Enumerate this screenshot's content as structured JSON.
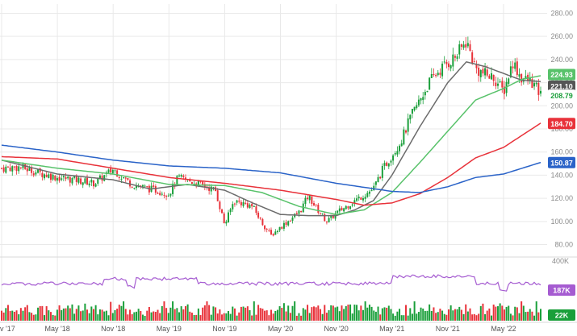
{
  "chart_data": {
    "type": "candlestick",
    "price_axis": {
      "ticks": [
        80,
        100,
        120,
        140,
        160,
        180,
        200,
        220,
        240,
        260,
        280
      ],
      "tick_labels": [
        "80.00",
        "100.00",
        "120.00",
        "140.00",
        "160.00",
        "180.00",
        "200.00",
        "220.00",
        "240.00",
        "260.00",
        "280.00"
      ],
      "ylim": [
        72,
        288
      ]
    },
    "x_axis": {
      "labels": [
        "v '17",
        "May '18",
        "Nov '18",
        "May '19",
        "Nov '19",
        "May '20",
        "Nov '20",
        "May '21",
        "Nov '21",
        "May '22"
      ],
      "start_date": "2017-11",
      "end_date": "2022-09"
    },
    "ohlc_anchor_closes": [
      [
        "2017-11",
        146
      ],
      [
        "2018-01",
        147
      ],
      [
        "2018-03",
        142
      ],
      [
        "2018-05",
        138
      ],
      [
        "2018-07",
        136
      ],
      [
        "2018-09",
        133
      ],
      [
        "2018-11",
        145
      ],
      [
        "2019-01",
        132
      ],
      [
        "2019-03",
        128
      ],
      [
        "2019-05",
        124
      ],
      [
        "2019-06",
        138
      ],
      [
        "2019-08",
        133
      ],
      [
        "2019-10",
        127
      ],
      [
        "2019-11",
        97
      ],
      [
        "2019-12",
        118
      ],
      [
        "2020-02",
        113
      ],
      [
        "2020-03",
        99
      ],
      [
        "2020-04",
        88
      ],
      [
        "2020-05",
        95
      ],
      [
        "2020-07",
        108
      ],
      [
        "2020-08",
        122
      ],
      [
        "2020-09",
        110
      ],
      [
        "2020-10",
        100
      ],
      [
        "2020-11",
        107
      ],
      [
        "2021-01",
        118
      ],
      [
        "2021-03",
        128
      ],
      [
        "2021-04",
        145
      ],
      [
        "2021-06",
        170
      ],
      [
        "2021-07",
        190
      ],
      [
        "2021-09",
        220
      ],
      [
        "2021-10",
        230
      ],
      [
        "2021-12",
        244
      ],
      [
        "2022-01",
        256
      ],
      [
        "2022-02",
        232
      ],
      [
        "2022-03",
        227
      ],
      [
        "2022-04",
        224
      ],
      [
        "2022-05",
        212
      ],
      [
        "2022-06",
        238
      ],
      [
        "2022-07",
        223
      ],
      [
        "2022-08",
        221
      ],
      [
        "2022-09",
        209
      ]
    ],
    "moving_averages": [
      {
        "color": "#6b6b6b",
        "points": [
          [
            "2017-11",
            153
          ],
          [
            "2018-05",
            141
          ],
          [
            "2018-11",
            136
          ],
          [
            "2019-03",
            128
          ],
          [
            "2019-07",
            132
          ],
          [
            "2019-11",
            127
          ],
          [
            "2020-02",
            116
          ],
          [
            "2020-05",
            106
          ],
          [
            "2020-08",
            105
          ],
          [
            "2020-11",
            105
          ],
          [
            "2021-01",
            110
          ],
          [
            "2021-03",
            118
          ],
          [
            "2021-05",
            140
          ],
          [
            "2021-08",
            182
          ],
          [
            "2021-11",
            220
          ],
          [
            "2022-01",
            238
          ],
          [
            "2022-03",
            234
          ],
          [
            "2022-05",
            228
          ],
          [
            "2022-07",
            222
          ],
          [
            "2022-09",
            221
          ]
        ]
      },
      {
        "color": "#58c26a",
        "points": [
          [
            "2017-11",
            153
          ],
          [
            "2018-05",
            146
          ],
          [
            "2018-11",
            141
          ],
          [
            "2019-05",
            132
          ],
          [
            "2019-11",
            131
          ],
          [
            "2020-03",
            125
          ],
          [
            "2020-07",
            113
          ],
          [
            "2020-11",
            106
          ],
          [
            "2021-02",
            110
          ],
          [
            "2021-05",
            125
          ],
          [
            "2021-08",
            151
          ],
          [
            "2021-11",
            178
          ],
          [
            "2022-02",
            205
          ],
          [
            "2022-05",
            215
          ],
          [
            "2022-07",
            223
          ],
          [
            "2022-09",
            226
          ]
        ]
      },
      {
        "color": "#e8323a",
        "points": [
          [
            "2017-11",
            156
          ],
          [
            "2018-05",
            154
          ],
          [
            "2018-11",
            146
          ],
          [
            "2019-05",
            138
          ],
          [
            "2019-11",
            133
          ],
          [
            "2020-05",
            127
          ],
          [
            "2020-11",
            119
          ],
          [
            "2021-02",
            114
          ],
          [
            "2021-05",
            116
          ],
          [
            "2021-08",
            124
          ],
          [
            "2021-11",
            138
          ],
          [
            "2022-02",
            155
          ],
          [
            "2022-05",
            164
          ],
          [
            "2022-09",
            185
          ]
        ]
      },
      {
        "color": "#2a63c8",
        "points": [
          [
            "2017-11",
            166
          ],
          [
            "2018-05",
            160
          ],
          [
            "2018-11",
            153
          ],
          [
            "2019-05",
            148
          ],
          [
            "2019-11",
            146
          ],
          [
            "2020-05",
            142
          ],
          [
            "2020-11",
            133
          ],
          [
            "2021-05",
            126
          ],
          [
            "2021-08",
            125
          ],
          [
            "2021-11",
            130
          ],
          [
            "2022-02",
            138
          ],
          [
            "2022-05",
            141
          ],
          [
            "2022-09",
            151
          ]
        ]
      }
    ],
    "price_tags": [
      {
        "text": "224.93",
        "bg": "#58c26a",
        "fg": "#ffffff",
        "value": 224.93
      },
      {
        "text": "221.10",
        "bg": "#555555",
        "fg": "#ffffff",
        "value": 221.1
      },
      {
        "text": "208.79",
        "bg": "#ffffff",
        "fg": "#1a9f3a",
        "value": 208.79
      },
      {
        "text": "184.70",
        "bg": "#e8323a",
        "fg": "#ffffff",
        "value": 184.7
      },
      {
        "text": "150.87",
        "bg": "#2a63c8",
        "fg": "#ffffff",
        "value": 150.87
      }
    ],
    "volume_panel": {
      "axis_label": "400K",
      "avg_volume_tag": {
        "text": "187K",
        "bg": "#a55bd1",
        "fg": "#ffffff"
      },
      "current_volume_tag": {
        "text": "22K",
        "bg": "#1a9f3a",
        "fg": "#ffffff"
      },
      "avg_line_color": "#a55bd1"
    },
    "colors": {
      "up": "#1a9f3a",
      "down": "#e8323a",
      "grid": "#e9e9e9",
      "axis_text": "#8a8a8a"
    }
  }
}
